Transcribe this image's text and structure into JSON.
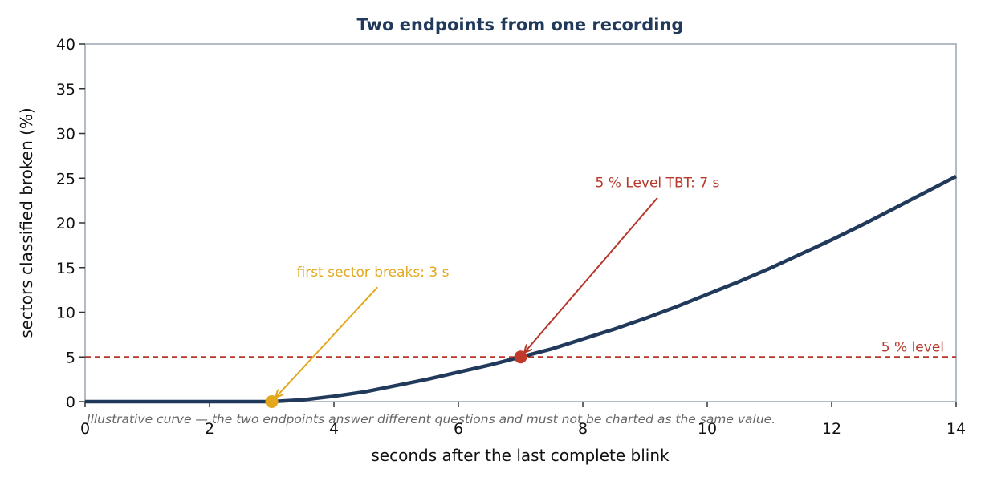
{
  "chart_data": {
    "type": "line",
    "title": "Two endpoints from one recording",
    "xlabel": "seconds after the last complete blink",
    "ylabel": "sectors classified broken (%)",
    "xlim": [
      0,
      14
    ],
    "ylim": [
      0,
      40
    ],
    "x_ticks": [
      0,
      2,
      4,
      6,
      8,
      10,
      12,
      14
    ],
    "y_ticks": [
      0,
      5,
      10,
      15,
      20,
      25,
      30,
      35,
      40
    ],
    "grid": false,
    "series": [
      {
        "color": "#213a5c",
        "x": [
          0,
          3,
          3.5,
          4,
          4.5,
          5,
          5.5,
          6,
          6.5,
          7,
          7.5,
          8,
          8.5,
          9,
          9.5,
          10,
          10.5,
          11,
          11.5,
          12,
          12.5,
          13,
          13.5,
          14
        ],
        "y": [
          0,
          0,
          0.2,
          0.6,
          1.1,
          1.8,
          2.5,
          3.3,
          4.1,
          5.0,
          5.9,
          7.0,
          8.1,
          9.3,
          10.6,
          12.0,
          13.4,
          14.9,
          16.5,
          18.1,
          19.8,
          21.6,
          23.4,
          25.2
        ]
      }
    ],
    "reference_line": {
      "y": 5,
      "label": "5 % level",
      "color": "#b5382a"
    },
    "markers": [
      {
        "x": 3,
        "y": 0,
        "color": "#e3a81d"
      },
      {
        "x": 7,
        "y": 5,
        "color": "#c0392b"
      }
    ],
    "annotations": [
      {
        "text": "first sector breaks: 3 s",
        "color": "#e3a81d",
        "target": [
          3,
          0
        ],
        "text_pos": [
          3.4,
          14
        ],
        "arrow_from": [
          4.7,
          12.8
        ]
      },
      {
        "text": "5 % Level TBT: 7 s",
        "color": "#b5382a",
        "target": [
          7,
          5
        ],
        "text_pos": [
          8.2,
          24
        ],
        "arrow_from": [
          9.2,
          22.8
        ]
      }
    ],
    "note": "Illustrative curve — the two endpoints answer different questions and must not be charted as the same value."
  }
}
